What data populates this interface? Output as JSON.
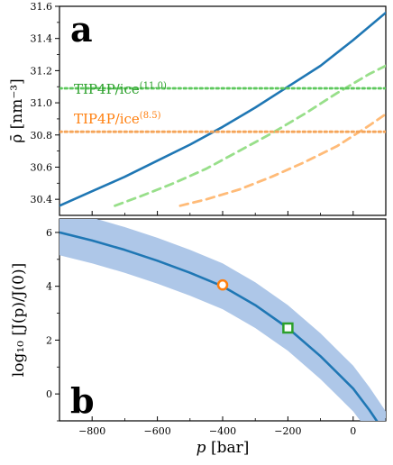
{
  "chart_data": [
    {
      "panel": "a",
      "type": "line",
      "xlim": [
        -900,
        100
      ],
      "ylim": [
        30.3,
        31.6
      ],
      "yticks": [
        "30.4",
        "30.6",
        "30.8",
        "31.0",
        "31.2",
        "31.4",
        "31.6"
      ],
      "ylabel": "ρ̄ [nm⁻³]",
      "series": [
        {
          "style": "solid",
          "color": "#1f77b4",
          "x": [
            -900,
            -800,
            -700,
            -600,
            -500,
            -400,
            -300,
            -200,
            -100,
            0,
            100
          ],
          "y": [
            30.36,
            30.45,
            30.54,
            30.64,
            30.74,
            30.85,
            30.97,
            31.1,
            31.23,
            31.39,
            31.56
          ]
        },
        {
          "style": "dashed",
          "color": "#98df8a",
          "x": [
            -730,
            -650,
            -550,
            -450,
            -350,
            -250,
            -150,
            -50,
            50,
            100
          ],
          "y": [
            30.36,
            30.42,
            30.5,
            30.59,
            30.7,
            30.81,
            30.93,
            31.06,
            31.18,
            31.23
          ]
        },
        {
          "style": "dashed",
          "color": "#ffbb78",
          "x": [
            -530,
            -450,
            -350,
            -250,
            -150,
            -50,
            50,
            100
          ],
          "y": [
            30.36,
            30.4,
            30.46,
            30.54,
            30.63,
            30.73,
            30.86,
            30.93
          ]
        },
        {
          "style": "dotted",
          "color": "#5dc85d",
          "hline": 31.09
        },
        {
          "style": "dotted",
          "color": "#f5a55a",
          "hline": 30.82
        }
      ],
      "annotations": [
        {
          "base": "TIP4P/ice",
          "sup": "(11.0)",
          "color": "#2ca02c"
        },
        {
          "base": "TIP4P/ice",
          "sup": "(8.5)",
          "color": "#ff7f0e"
        }
      ]
    },
    {
      "panel": "b",
      "type": "line",
      "xlim": [
        -900,
        100
      ],
      "ylim": [
        -1,
        6.5
      ],
      "xticks": [
        "−800",
        "−600",
        "−400",
        "−200",
        "0"
      ],
      "yticks": [
        "0",
        "2",
        "4",
        "6"
      ],
      "xlabel_var": "p",
      "xlabel_unit": "[bar]",
      "ylabel": "log₁₀ [J(p)/J(0)]",
      "line": {
        "color": "#1f77b4",
        "x": [
          -900,
          -800,
          -700,
          -600,
          -500,
          -400,
          -300,
          -200,
          -100,
          0,
          50,
          100
        ],
        "y": [
          6.0,
          5.7,
          5.35,
          4.95,
          4.5,
          4.0,
          3.3,
          2.45,
          1.4,
          0.2,
          -0.6,
          -1.5
        ]
      },
      "band": {
        "color": "#aec7e8",
        "halfwidth": 0.85
      },
      "markers": [
        {
          "shape": "circle",
          "color": "#ff7f0e",
          "x": -400,
          "y": 4.05
        },
        {
          "shape": "square",
          "color": "#2ca02c",
          "x": -200,
          "y": 2.45
        }
      ]
    }
  ]
}
